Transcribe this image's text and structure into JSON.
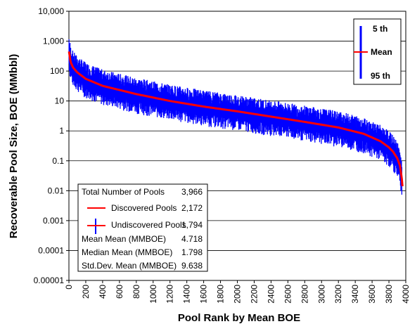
{
  "chart_data": {
    "type": "line",
    "title": "",
    "xlabel": "Pool Rank by Mean BOE",
    "ylabel": "Recoverable Pool Size,  BOE (MMbbl)",
    "x_range": [
      0,
      4000
    ],
    "x_ticks": [
      0,
      200,
      400,
      600,
      800,
      1000,
      1200,
      1400,
      1600,
      1800,
      2000,
      2200,
      2400,
      2600,
      2800,
      3000,
      3200,
      3400,
      3600,
      3800,
      4000
    ],
    "y_scale": "log",
    "y_range": [
      1e-05,
      10000
    ],
    "y_ticks": [
      "10,000",
      "1,000",
      "100",
      "10",
      "1",
      "0.1",
      "0.01",
      "0.001",
      "0.0001",
      "0.00001"
    ],
    "y_tick_values": [
      10000,
      1000,
      100,
      10,
      1,
      0.1,
      0.01,
      0.001,
      0.0001,
      1e-05
    ],
    "grid": "horizontal",
    "legend": {
      "placement": "top-right",
      "entries": [
        "5 th",
        "Mean",
        "95 th"
      ]
    },
    "colors": {
      "mean": "#ff0000",
      "range": "#0000ff"
    },
    "mean_curve": {
      "x": [
        1,
        20,
        50,
        100,
        200,
        400,
        800,
        1200,
        1600,
        2000,
        2400,
        2800,
        3200,
        3500,
        3700,
        3800,
        3850,
        3900,
        3930,
        3950,
        3966
      ],
      "y": [
        450,
        200,
        130,
        90,
        55,
        32,
        17,
        10,
        6.5,
        4.5,
        3.0,
        2.0,
        1.3,
        0.8,
        0.45,
        0.28,
        0.2,
        0.12,
        0.07,
        0.03,
        0.01
      ]
    },
    "percentile_band": {
      "p5_factor": 0.4,
      "p95_factor": 2.2
    },
    "stats_table": {
      "rows": [
        {
          "label": "Total Number of Pools",
          "value": "3,966"
        },
        {
          "label": "Discovered Pools",
          "value": "2,172"
        },
        {
          "label": "Undiscovered Pools",
          "value": "1,794"
        },
        {
          "label": "Mean Mean (MMBOE)",
          "value": "4.718"
        },
        {
          "label": "Median Mean (MMBOE)",
          "value": "1.798"
        },
        {
          "label": "Std.Dev. Mean (MMBOE)",
          "value": "9.638"
        }
      ]
    }
  }
}
